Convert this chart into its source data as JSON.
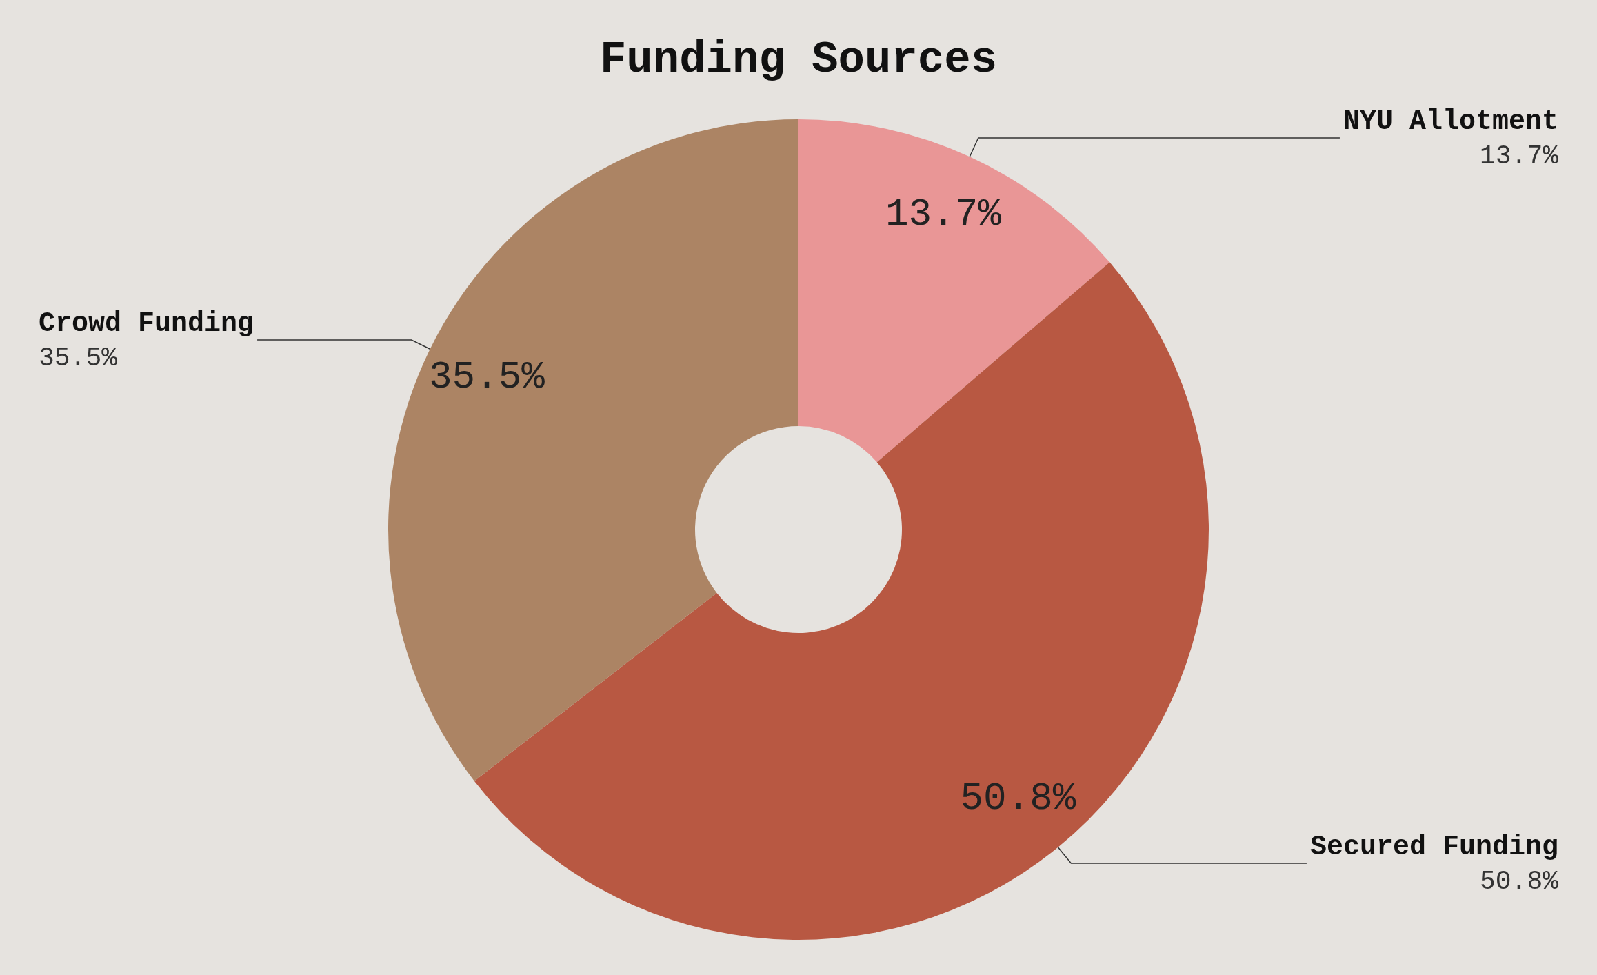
{
  "chart_data": {
    "type": "donut",
    "title": "Funding Sources",
    "categories": [
      "NYU Allotment",
      "Secured Funding",
      "Crowd Funding"
    ],
    "values": [
      13.7,
      50.8,
      35.5
    ],
    "colors": [
      "#e99696",
      "#b85842",
      "#ac8464"
    ],
    "value_labels": [
      "13.7%",
      "50.8%",
      "35.5%"
    ]
  }
}
